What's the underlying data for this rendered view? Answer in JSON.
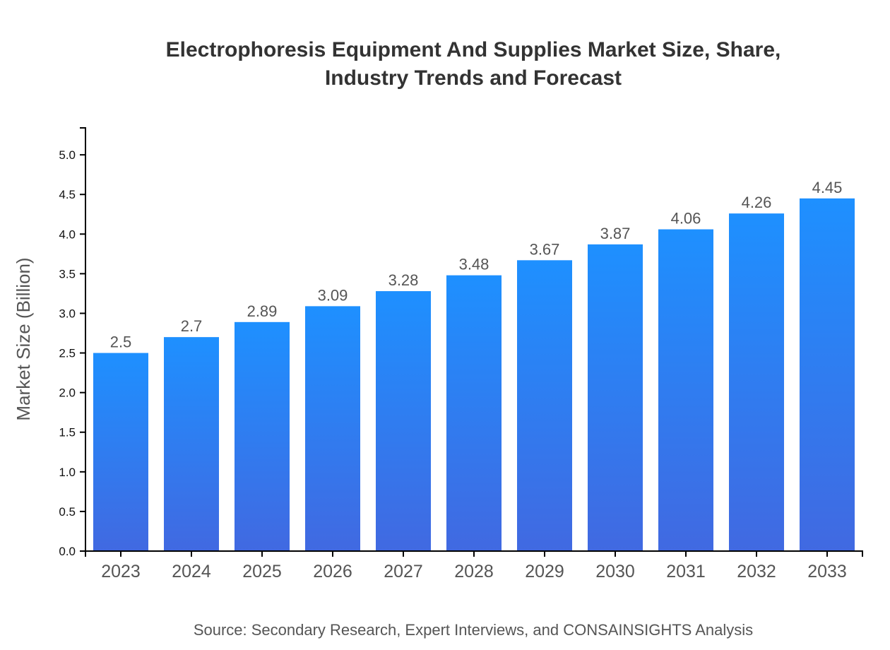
{
  "chart_data": {
    "type": "bar",
    "title": [
      "Electrophoresis Equipment And Supplies Market Size, Share,",
      "Industry Trends and Forecast"
    ],
    "ylabel": "Market Size (Billion)",
    "xlabel": "",
    "categories": [
      "2023",
      "2024",
      "2025",
      "2026",
      "2027",
      "2028",
      "2029",
      "2030",
      "2031",
      "2032",
      "2033"
    ],
    "values": [
      2.5,
      2.7,
      2.89,
      3.09,
      3.28,
      3.48,
      3.67,
      3.87,
      4.06,
      4.26,
      4.45
    ],
    "ylim": [
      0,
      5.34
    ],
    "yticks": [
      "0.0",
      "0.5",
      "1.0",
      "1.5",
      "2.0",
      "2.5",
      "3.0",
      "3.5",
      "4.0",
      "4.5",
      "5.0"
    ],
    "grid": false,
    "colors": {
      "bar_top": "#1e90ff",
      "bar_bottom": "#4169e1"
    },
    "source": "Source: Secondary Research, Expert Interviews, and CONSAINSIGHTS Analysis"
  }
}
